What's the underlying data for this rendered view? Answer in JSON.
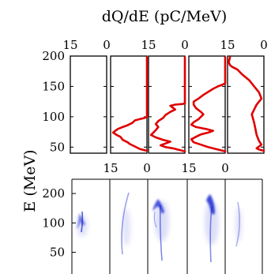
{
  "chart_data": [
    {
      "type": "line",
      "title": "dQ/dE (pC/MeV)",
      "ylabel": "E (MeV)",
      "ylim": [
        40,
        200
      ],
      "y_ticks": [
        50,
        100,
        150,
        200
      ],
      "xlim": [
        15,
        0
      ],
      "x_tick_labels_top": [
        [
          "15",
          "0"
        ],
        [
          "15",
          "0"
        ],
        [
          "15",
          "0"
        ]
      ],
      "x_tick_labels_bottom": [
        [
          "15",
          "0"
        ],
        [
          "15",
          "0"
        ]
      ],
      "grid": false,
      "series": [
        {
          "panel": 1,
          "points": [
            [
              0,
              198
            ],
            [
              0,
              100
            ],
            [
              1,
              98
            ],
            [
              3,
              96
            ],
            [
              5,
              94
            ],
            [
              6,
              90
            ],
            [
              8,
              86
            ],
            [
              10,
              83
            ],
            [
              12,
              80
            ],
            [
              13,
              77
            ],
            [
              14,
              74
            ],
            [
              12.5,
              70
            ],
            [
              11,
              67
            ],
            [
              10,
              62
            ],
            [
              8,
              58
            ],
            [
              7,
              55
            ],
            [
              5,
              51
            ],
            [
              3,
              47
            ],
            [
              1,
              45
            ],
            [
              0,
              44
            ]
          ]
        },
        {
          "panel": 2,
          "points": [
            [
              0,
              198
            ],
            [
              0,
              122
            ],
            [
              1,
              121
            ],
            [
              4,
              120
            ],
            [
              6,
              118
            ],
            [
              5,
              115
            ],
            [
              4,
              112
            ],
            [
              6,
              108
            ],
            [
              8,
              103
            ],
            [
              9,
              98
            ],
            [
              11,
              93
            ],
            [
              12,
              88
            ],
            [
              11,
              83
            ],
            [
              12,
              78
            ],
            [
              13,
              74
            ],
            [
              14,
              70
            ],
            [
              12,
              66
            ],
            [
              9,
              62
            ],
            [
              6,
              59
            ],
            [
              8,
              56
            ],
            [
              10,
              53
            ],
            [
              8,
              50
            ],
            [
              5,
              48
            ],
            [
              3,
              46
            ],
            [
              1,
              44
            ],
            [
              0,
              43
            ]
          ]
        },
        {
          "panel": 3,
          "points": [
            [
              0,
              198
            ],
            [
              0,
              155
            ],
            [
              1,
              153
            ],
            [
              3,
              150
            ],
            [
              5,
              146
            ],
            [
              7,
              141
            ],
            [
              9,
              136
            ],
            [
              11,
              130
            ],
            [
              13,
              125
            ],
            [
              13,
              120
            ],
            [
              12,
              114
            ],
            [
              10,
              108
            ],
            [
              9,
              104
            ],
            [
              10,
              100
            ],
            [
              11,
              96
            ],
            [
              13,
              91
            ],
            [
              14,
              87
            ],
            [
              12,
              83
            ],
            [
              8,
              80
            ],
            [
              5,
              77
            ],
            [
              7,
              74
            ],
            [
              10,
              71
            ],
            [
              12,
              67
            ],
            [
              14,
              63
            ],
            [
              13,
              58
            ],
            [
              10,
              54
            ],
            [
              7,
              50
            ],
            [
              4,
              47
            ],
            [
              1,
              44
            ],
            [
              0,
              43
            ]
          ]
        },
        {
          "panel": 4,
          "points": [
            [
              14,
              198
            ],
            [
              14.5,
              190
            ],
            [
              14,
              185
            ],
            [
              13,
              182
            ],
            [
              11,
              178
            ],
            [
              9,
              170
            ],
            [
              6,
              160
            ],
            [
              4,
              150
            ],
            [
              2,
              140
            ],
            [
              1,
              130
            ],
            [
              2,
              125
            ],
            [
              3,
              120
            ],
            [
              4,
              112
            ],
            [
              5,
              104
            ],
            [
              4.5,
              97
            ],
            [
              4,
              90
            ],
            [
              3.5,
              80
            ],
            [
              3,
              70
            ],
            [
              2,
              60
            ],
            [
              1,
              54
            ],
            [
              2,
              51
            ],
            [
              3,
              48
            ],
            [
              2,
              46
            ],
            [
              1,
              45
            ],
            [
              0,
              44
            ]
          ]
        }
      ]
    },
    {
      "type": "heatmap",
      "ylabel": "E (MeV)",
      "y_ticks": [
        50,
        100,
        200
      ],
      "ylim": [
        30,
        280
      ],
      "colormap": "white-to-blue",
      "panels": 5
    }
  ],
  "colors": {
    "curve": "#e00000",
    "frame": "#000000",
    "heat_dark": "#0a1fcf",
    "heat_light": "#c8cdf8"
  }
}
